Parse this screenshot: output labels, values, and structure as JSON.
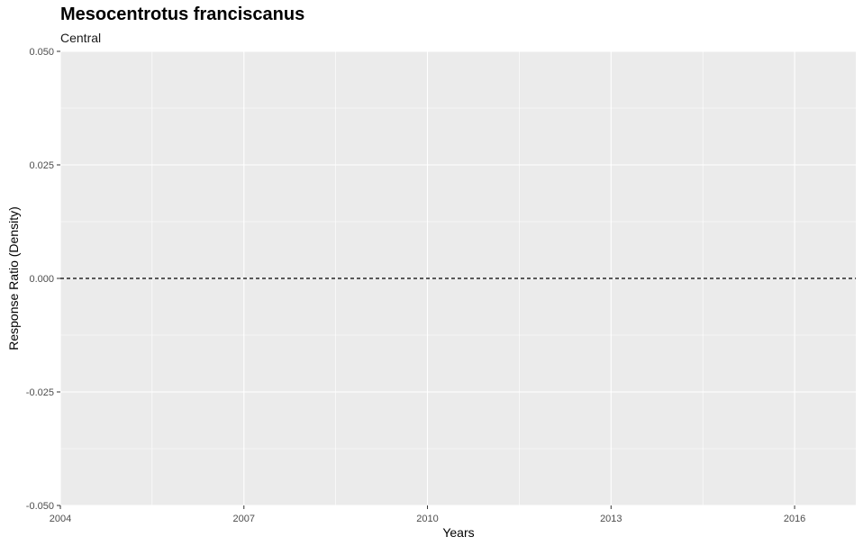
{
  "chart_data": {
    "type": "line",
    "title": "Mesocentrotus franciscanus",
    "subtitle": "Central",
    "xlabel": "Years",
    "ylabel": "Response Ratio (Density)",
    "xlim": [
      2004,
      2017
    ],
    "ylim": [
      -0.05,
      0.05
    ],
    "x_ticks": [
      2004,
      2007,
      2010,
      2013,
      2016
    ],
    "x_tick_labels": [
      "2004",
      "2007",
      "2010",
      "2013",
      "2016"
    ],
    "y_ticks": [
      -0.05,
      -0.025,
      0,
      0.025,
      0.05
    ],
    "y_tick_labels": [
      "-0.050",
      "-0.025",
      "0.000",
      "0.025",
      "0.050"
    ],
    "grid": true,
    "series": [],
    "reference_lines": [
      {
        "axis": "y",
        "value": 0,
        "style": "dashed"
      }
    ],
    "colors": {
      "panel_background": "#ebebeb",
      "grid": "#ffffff",
      "reference_line": "#000000"
    }
  }
}
